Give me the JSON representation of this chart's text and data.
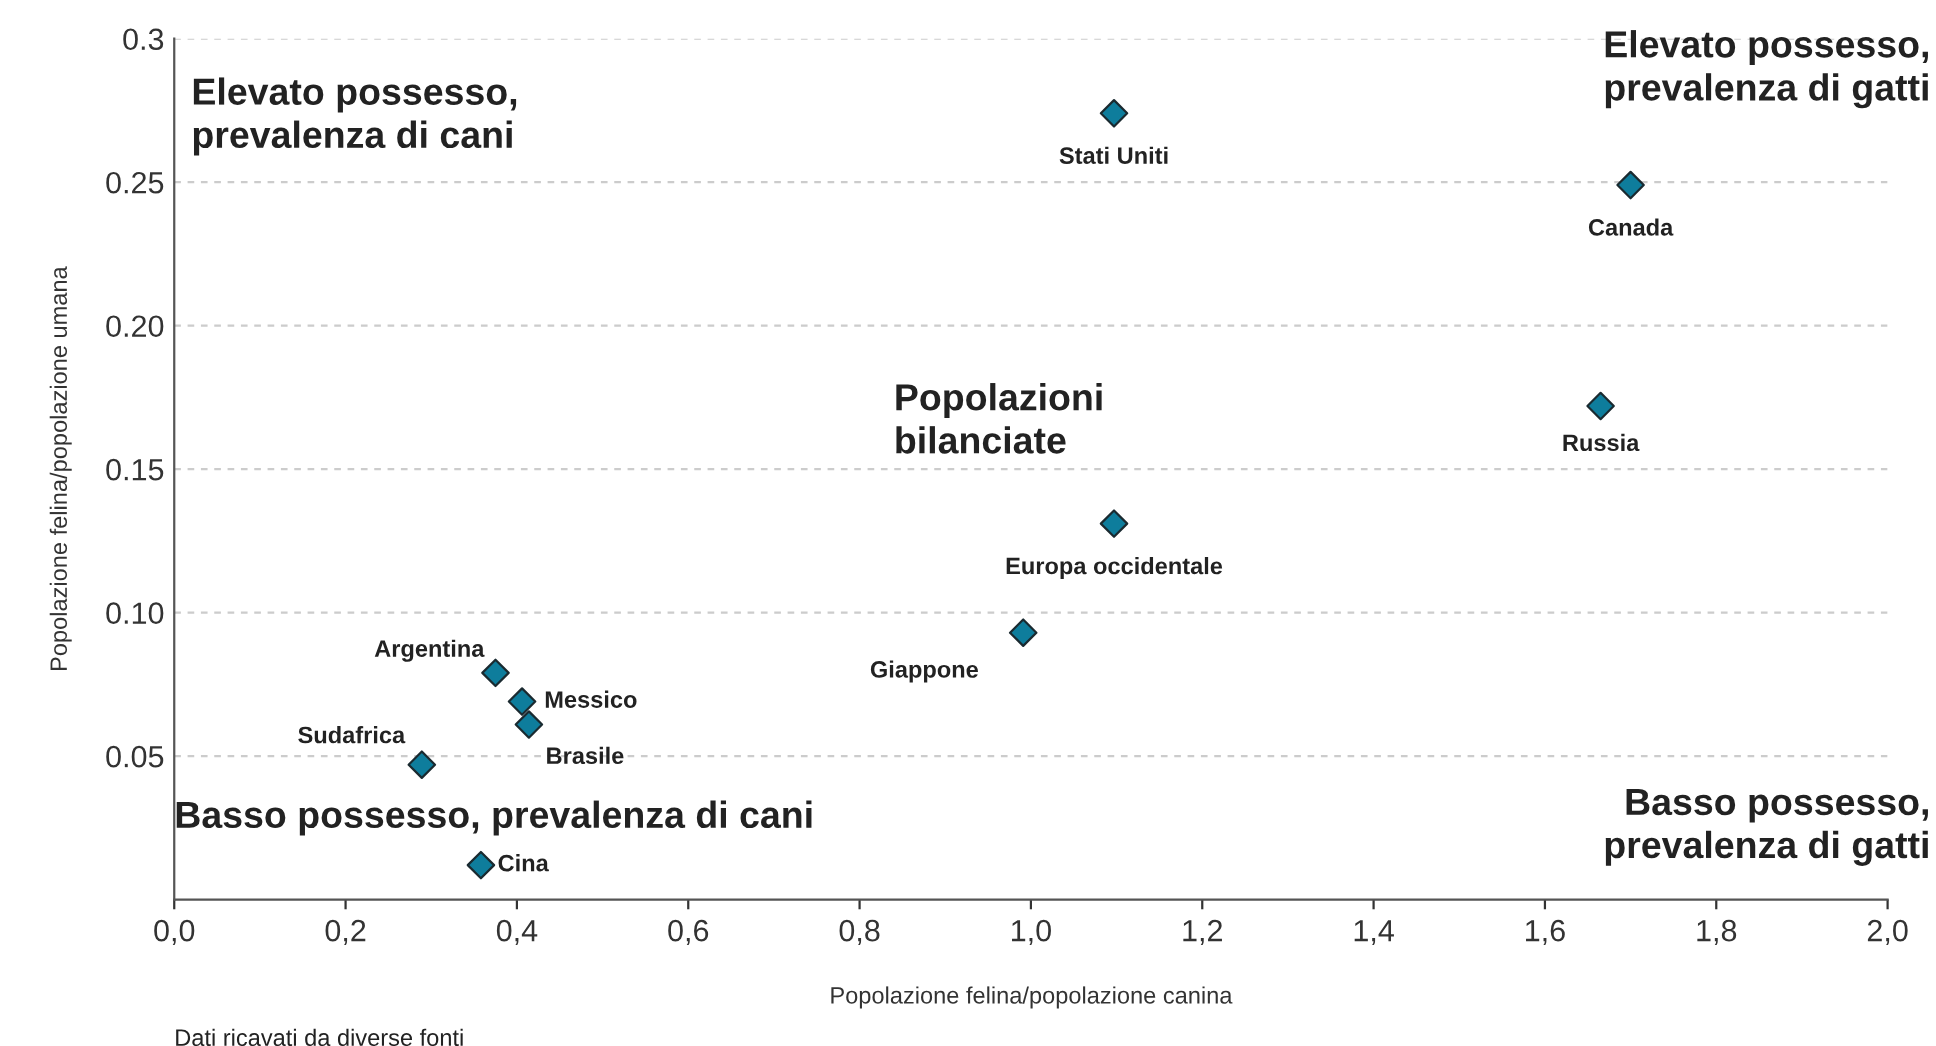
{
  "chart_data": {
    "type": "scatter",
    "xlabel": "Popolazione felina/popolazione canina",
    "ylabel": "Popolazione felina/popolazione umana",
    "x": [
      1.097,
      1.7,
      1.665,
      1.097,
      0.991,
      0.375,
      0.406,
      0.414,
      0.289,
      0.358
    ],
    "values": [
      0.274,
      0.249,
      0.172,
      0.131,
      0.093,
      0.079,
      0.069,
      0.061,
      0.047,
      0.012
    ],
    "color": "#0e7d9c",
    "marker": "diamond",
    "xlim": [
      0,
      2.0
    ],
    "xticks": [
      {
        "value": 0,
        "label": "0,0"
      },
      {
        "value": 0.2,
        "label": "0,2"
      },
      {
        "value": 0.4,
        "label": "0,4"
      },
      {
        "value": 0.6,
        "label": "0,6"
      },
      {
        "value": 0.8,
        "label": "0,8"
      },
      {
        "value": 1.0,
        "label": "1,0"
      },
      {
        "value": 1.2,
        "label": "1,2"
      },
      {
        "value": 1.4,
        "label": "1,4"
      },
      {
        "value": 1.6,
        "label": "1,6"
      },
      {
        "value": 1.8,
        "label": "1,8"
      },
      {
        "value": 2.0,
        "label": "2,0"
      }
    ],
    "ylim": [
      0,
      0.3
    ],
    "yticks": [
      {
        "value": 0.05,
        "label": "0.05"
      },
      {
        "value": 0.1,
        "label": "0.10"
      },
      {
        "value": 0.15,
        "label": "0.15"
      },
      {
        "value": 0.2,
        "label": "0.20"
      },
      {
        "value": 0.25,
        "label": "0.25"
      },
      {
        "value": 0.3,
        "label": "0.3"
      }
    ],
    "grid": "y",
    "annotations": [
      {
        "text": "Stati Uniti",
        "x": 1.097,
        "y": 0.274
      },
      {
        "text": "Canada",
        "x": 1.7,
        "y": 0.249
      },
      {
        "text": "Russia",
        "x": 1.665,
        "y": 0.172
      },
      {
        "text": "Europa occidentale",
        "x": 1.097,
        "y": 0.131
      },
      {
        "text": "Giappone",
        "x": 0.991,
        "y": 0.093
      },
      {
        "text": "Argentina",
        "x": 0.375,
        "y": 0.079
      },
      {
        "text": "Messico",
        "x": 0.406,
        "y": 0.069
      },
      {
        "text": "Brasile",
        "x": 0.414,
        "y": 0.061
      },
      {
        "text": "Sudafrica",
        "x": 0.289,
        "y": 0.047
      },
      {
        "text": "Cina",
        "x": 0.358,
        "y": 0.012
      },
      "Elevato possesso,\nprevalenza di cani",
      "Elevato possesso,\nprevalenza di gatti",
      "Popolazioni\nbilanciate",
      "Basso possesso, prevalenza di cani",
      "Basso possesso,\nprevalenza di gatti",
      "Dati ricavati da diverse fonti"
    ]
  }
}
